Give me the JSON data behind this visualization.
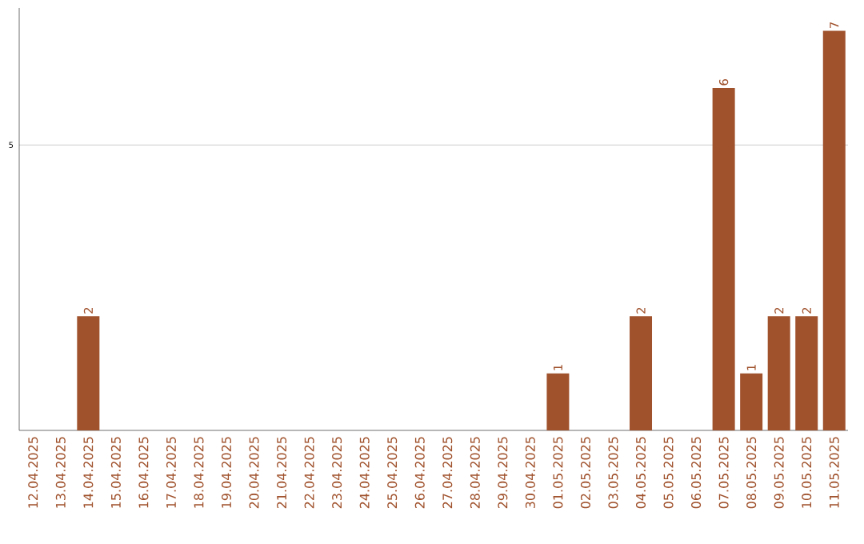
{
  "chart_data": {
    "type": "bar",
    "categories": [
      "12.04.2025",
      "13.04.2025",
      "14.04.2025",
      "15.04.2025",
      "16.04.2025",
      "17.04.2025",
      "18.04.2025",
      "19.04.2025",
      "20.04.2025",
      "21.04.2025",
      "22.04.2025",
      "23.04.2025",
      "24.04.2025",
      "25.04.2025",
      "26.04.2025",
      "27.04.2025",
      "28.04.2025",
      "29.04.2025",
      "30.04.2025",
      "01.05.2025",
      "02.05.2025",
      "03.05.2025",
      "04.05.2025",
      "05.05.2025",
      "06.05.2025",
      "07.05.2025",
      "08.05.2025",
      "09.05.2025",
      "10.05.2025",
      "11.05.2025"
    ],
    "values": [
      0,
      0,
      2,
      0,
      0,
      0,
      0,
      0,
      0,
      0,
      0,
      0,
      0,
      0,
      0,
      0,
      0,
      0,
      0,
      1,
      0,
      0,
      2,
      0,
      0,
      6,
      1,
      2,
      2,
      7
    ],
    "value_labels": [
      null,
      null,
      "2",
      null,
      null,
      null,
      null,
      null,
      null,
      null,
      null,
      null,
      null,
      null,
      null,
      null,
      null,
      null,
      null,
      "1",
      null,
      null,
      "2",
      null,
      null,
      "6",
      "1",
      "2",
      "2",
      "7"
    ],
    "color": "#a0522d",
    "ylim": [
      0,
      7.4
    ],
    "yticks": [
      5
    ],
    "grid": "y"
  }
}
